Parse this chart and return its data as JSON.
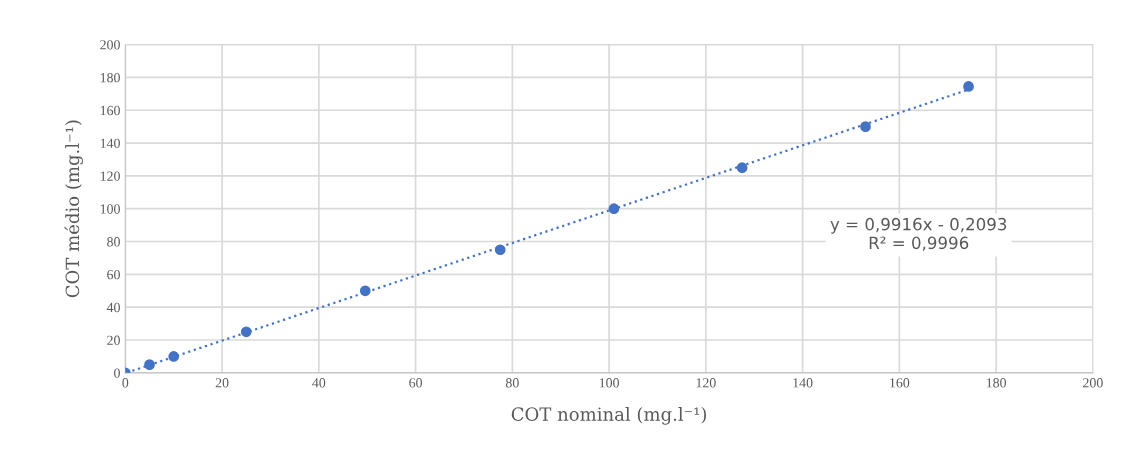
{
  "chart_data": {
    "type": "scatter",
    "xlabel": "COT nominal (mg.l⁻¹)",
    "ylabel": "COT médio (mg.l⁻¹)",
    "xlim": [
      0,
      200
    ],
    "xticks": [
      0,
      20,
      40,
      60,
      80,
      100,
      120,
      140,
      160,
      180,
      200
    ],
    "ylim": [
      0,
      200
    ],
    "yticks": [
      0,
      20,
      40,
      60,
      80,
      100,
      120,
      140,
      160,
      180,
      200
    ],
    "grid": true,
    "legend": false,
    "series": [
      {
        "color": "#4472c4",
        "marker": "circle",
        "x": [
          0,
          5,
          10,
          25,
          49.6,
          77.5,
          101,
          127.5,
          153,
          174.3
        ],
        "values": [
          0,
          5,
          10,
          25,
          50,
          75,
          100,
          125,
          150,
          174.5
        ]
      },
      {
        "type": "line",
        "color": "#4472c4",
        "line_style": "dotted",
        "marker": "none",
        "x": [
          0.3,
          174.3
        ],
        "values": [
          0.1,
          172.6
        ]
      }
    ],
    "annotations": [
      "y = 0,9916x - 0,2093\nR² = 0,9996"
    ]
  }
}
